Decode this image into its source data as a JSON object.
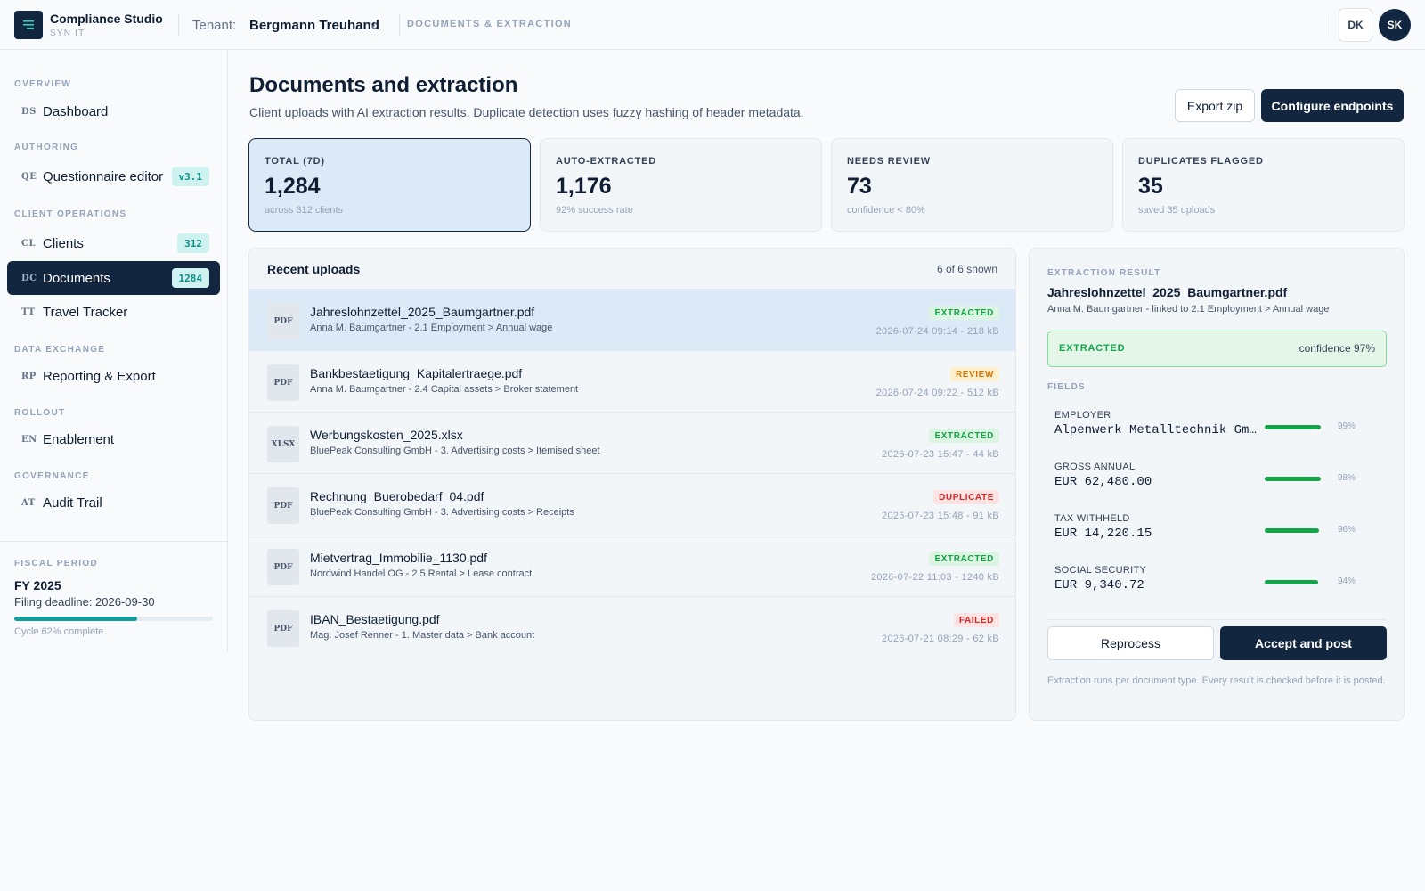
{
  "app": {
    "name": "Compliance Studio",
    "sub": "SYN IT",
    "tenant_label": "Tenant:",
    "tenant": "Bergmann Treuhand",
    "tenant_chevron": "v",
    "section": "DOCUMENTS & EXTRACTION",
    "locale_button": "DK",
    "user_initials": "SK"
  },
  "sidebar": {
    "groups": [
      "OVERVIEW",
      "AUTHORING",
      "CLIENT OPERATIONS",
      "DATA EXCHANGE",
      "ROLLOUT",
      "GOVERNANCE"
    ],
    "items": [
      {
        "abbr": "DS",
        "label": "Dashboard",
        "badge": ""
      },
      {
        "abbr": "QE",
        "label": "Questionnaire editor",
        "badge": "v3.1"
      },
      {
        "abbr": "CL",
        "label": "Clients",
        "badge": "312"
      },
      {
        "abbr": "DC",
        "label": "Documents",
        "badge": "1284"
      },
      {
        "abbr": "TT",
        "label": "Travel Tracker",
        "badge": ""
      },
      {
        "abbr": "RP",
        "label": "Reporting & Export",
        "badge": ""
      },
      {
        "abbr": "EN",
        "label": "Enablement",
        "badge": ""
      },
      {
        "abbr": "AT",
        "label": "Audit Trail",
        "badge": ""
      }
    ],
    "fiscal": {
      "title": "FISCAL PERIOD",
      "year": "FY 2025",
      "deadline": "Filing deadline: 2026-09-30",
      "progress": 0.62,
      "cycle": "Cycle 62% complete"
    }
  },
  "page": {
    "title": "Documents and extraction",
    "subtitle": "Client uploads with AI extraction results. Duplicate detection uses fuzzy hashing of header metadata.",
    "export_button": "Export zip",
    "configure_button": "Configure endpoints"
  },
  "stats": [
    {
      "label": "TOTAL (7D)",
      "value": "1,284",
      "note": "across 312 clients"
    },
    {
      "label": "AUTO-EXTRACTED",
      "value": "1,176",
      "note": "92% success rate"
    },
    {
      "label": "NEEDS REVIEW",
      "value": "73",
      "note": "confidence < 80%"
    },
    {
      "label": "DUPLICATES FLAGGED",
      "value": "35",
      "note": "saved 35 uploads"
    }
  ],
  "uploads": {
    "title": "Recent uploads",
    "count": "6 of 6 shown",
    "rows": [
      {
        "type": "PDF",
        "name": "Jahreslohnzettel_2025_Baumgartner.pdf",
        "meta": "Anna M. Baumgartner - 2.1 Employment > Annual wage",
        "status": "EXTRACTED",
        "date": "2026-07-24 09:14 - 218 kB"
      },
      {
        "type": "PDF",
        "name": "Bankbestaetigung_Kapitalertraege.pdf",
        "meta": "Anna M. Baumgartner - 2.4 Capital assets > Broker statement",
        "status": "REVIEW",
        "date": "2026-07-24 09:22 - 512 kB"
      },
      {
        "type": "XLSX",
        "name": "Werbungskosten_2025.xlsx",
        "meta": "BluePeak Consulting GmbH - 3. Advertising costs > Itemised sheet",
        "status": "EXTRACTED",
        "date": "2026-07-23 15:47 - 44 kB"
      },
      {
        "type": "PDF",
        "name": "Rechnung_Buerobedarf_04.pdf",
        "meta": "BluePeak Consulting GmbH - 3. Advertising costs > Receipts",
        "status": "DUPLICATE",
        "date": "2026-07-23 15:48 - 91 kB"
      },
      {
        "type": "PDF",
        "name": "Mietvertrag_Immobilie_1130.pdf",
        "meta": "Nordwind Handel OG - 2.5 Rental > Lease contract",
        "status": "EXTRACTED",
        "date": "2026-07-22 11:03 - 1240 kB"
      },
      {
        "type": "PDF",
        "name": "IBAN_Bestaetigung.pdf",
        "meta": "Mag. Josef Renner - 1. Master data > Bank account",
        "status": "FAILED",
        "date": "2026-07-21 08:29 - 62 kB"
      }
    ]
  },
  "extraction": {
    "label": "EXTRACTION RESULT",
    "file": "Jahreslohnzettel_2025_Baumgartner.pdf",
    "linked": "Anna M. Baumgartner - linked to 2.1 Employment > Annual wage",
    "status": "EXTRACTED",
    "confidence": "confidence 97%",
    "fields_label": "FIELDS",
    "fields": [
      {
        "label": "EMPLOYER",
        "value": "Alpenwerk Metalltechnik GmbH",
        "confidence": 0.99,
        "pct": "99%"
      },
      {
        "label": "GROSS ANNUAL",
        "value": "EUR 62,480.00",
        "confidence": 0.98,
        "pct": "98%"
      },
      {
        "label": "TAX WITHHELD",
        "value": "EUR 14,220.15",
        "confidence": 0.96,
        "pct": "96%"
      },
      {
        "label": "SOCIAL SECURITY",
        "value": "EUR 9,340.72",
        "confidence": 0.94,
        "pct": "94%"
      }
    ],
    "reprocess_button": "Reprocess",
    "accept_button": "Accept and post",
    "note": "Extraction runs per document type. Every result is checked before it is posted."
  }
}
